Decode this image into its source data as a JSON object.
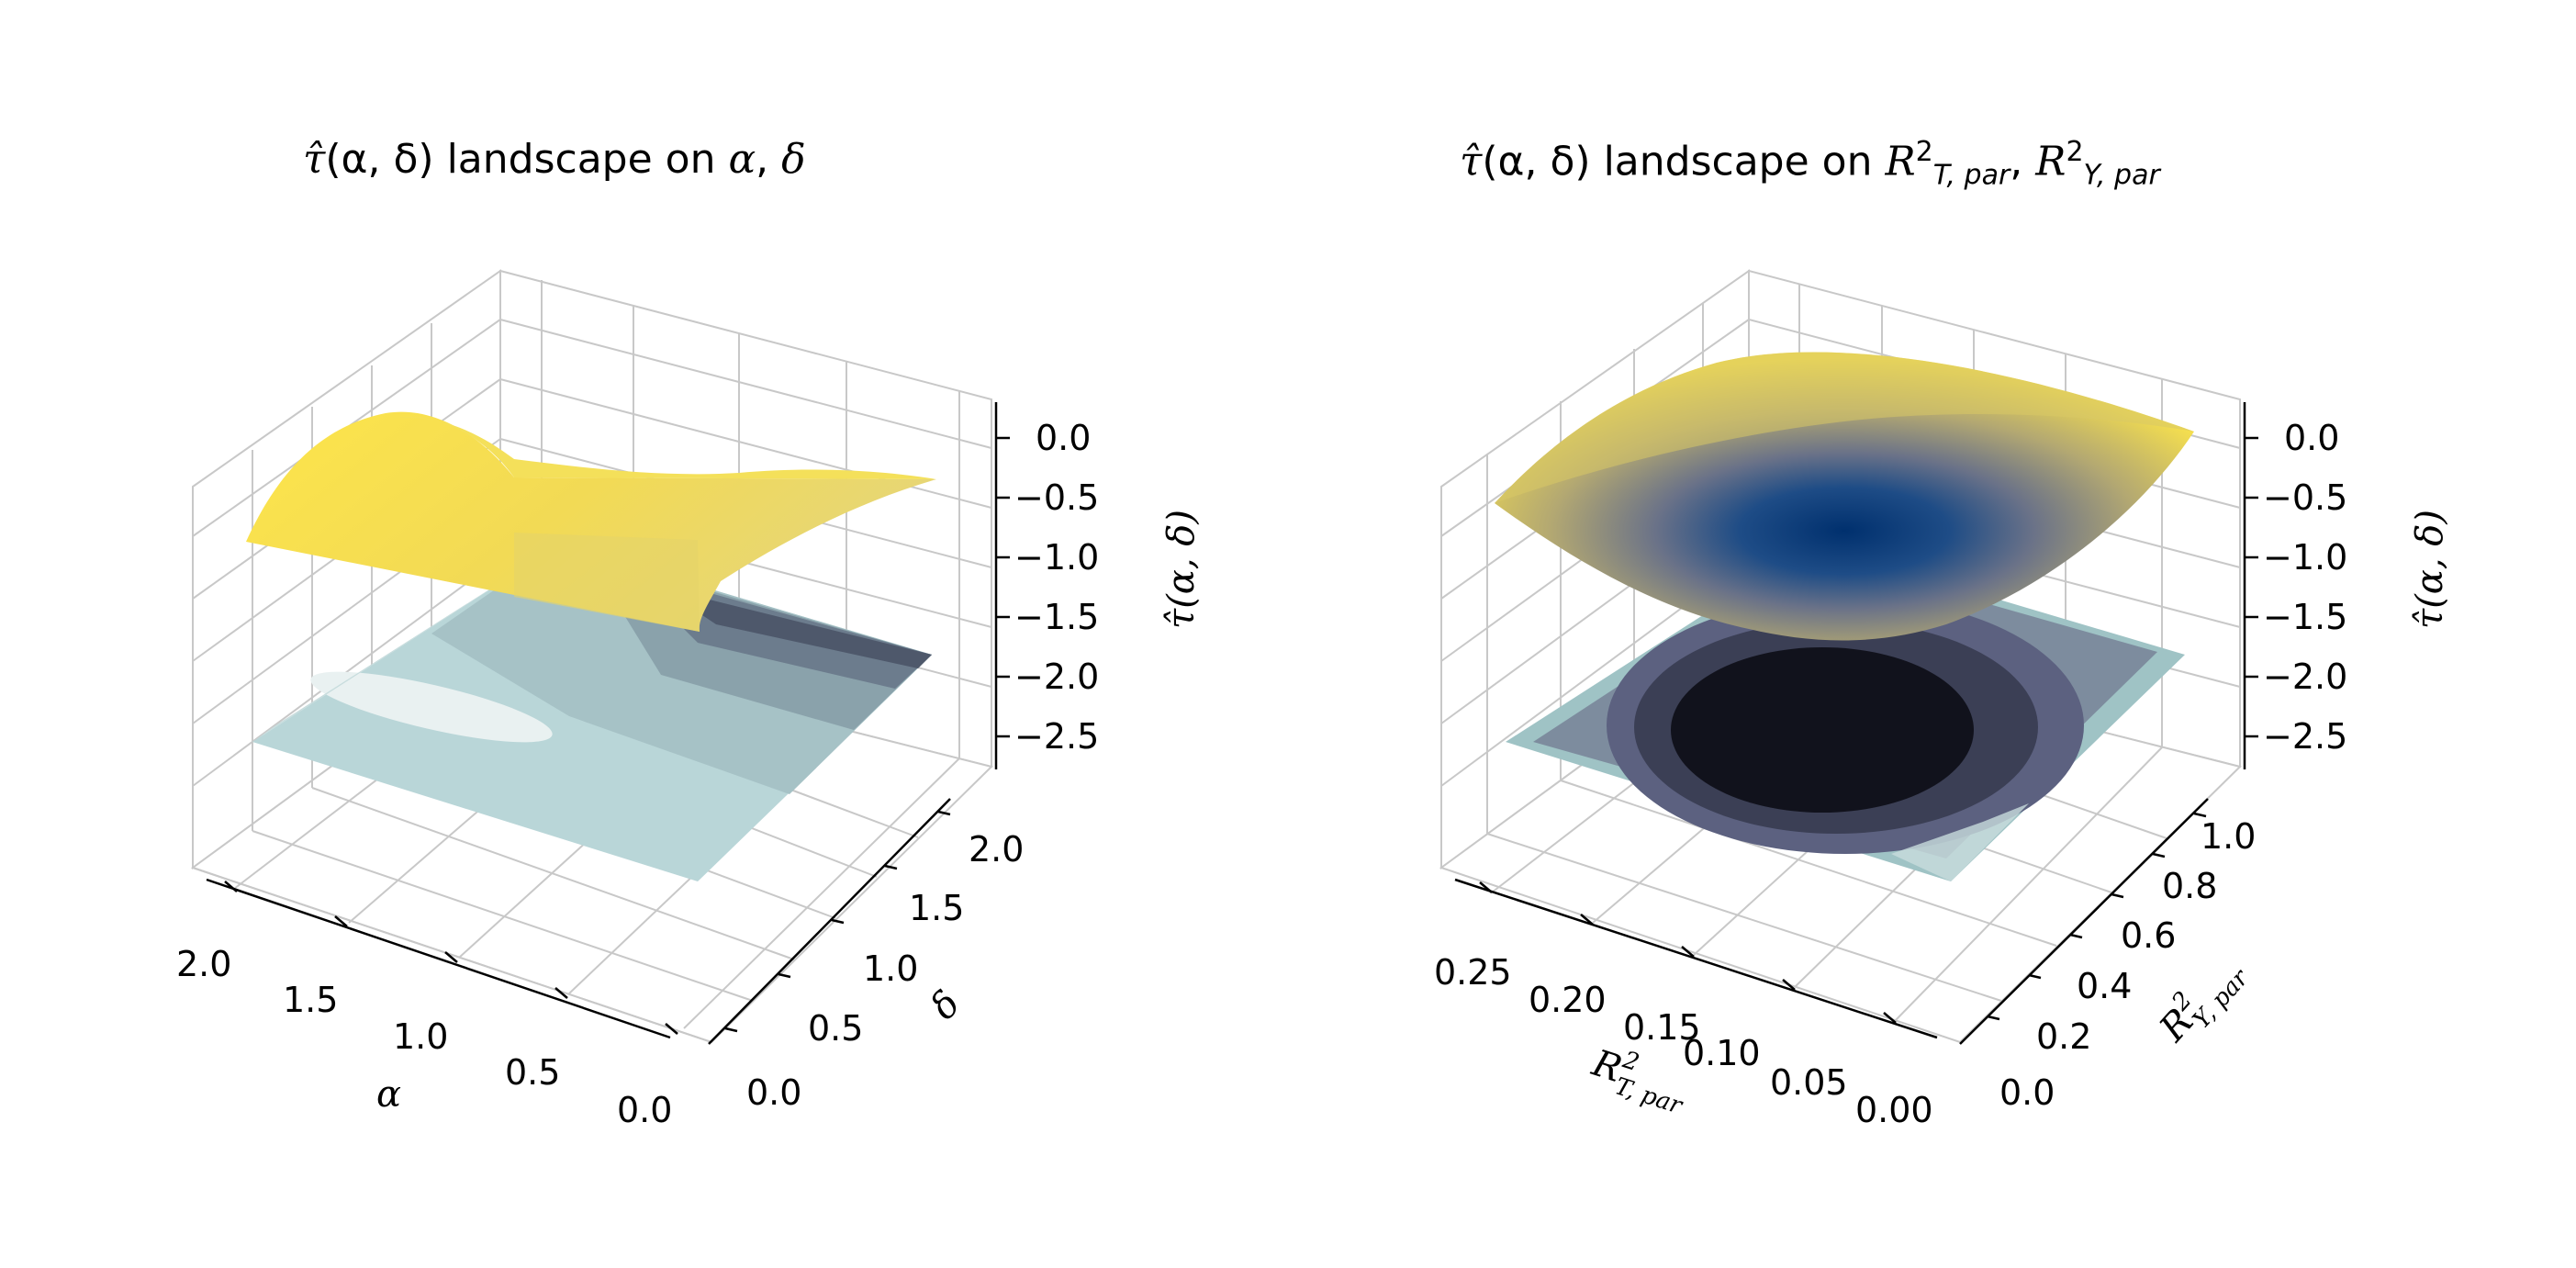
{
  "chart_data": [
    {
      "type": "surface3d",
      "title": "τ̂(α, δ) landscape on α, δ",
      "title_parts": {
        "tau": "τ̂",
        "args": "(α, δ)",
        "text": "landscape on",
        "v1": "α",
        "sep": ",",
        "v2": "δ"
      },
      "xlabel": "α",
      "ylabel": "δ",
      "zlabel": "τ̂(α, δ)",
      "x_ticks": [
        "2.0",
        "1.5",
        "1.0",
        "0.5",
        "0.0"
      ],
      "y_ticks": [
        "0.0",
        "0.5",
        "1.0",
        "1.5",
        "2.0"
      ],
      "z_ticks": [
        "0.0",
        "−0.5",
        "−1.0",
        "−1.5",
        "−2.0",
        "−2.5"
      ],
      "xlim": [
        0,
        2
      ],
      "ylim": [
        0,
        2
      ],
      "zlim": [
        -2.7,
        0.2
      ],
      "colormap": "cividis",
      "surface_z_range": [
        -1.5,
        -0.3
      ],
      "contour_floor": true
    },
    {
      "type": "surface3d",
      "title": "τ̂(α, δ) landscape on R²T,par, R²Y,par",
      "title_parts": {
        "tau": "τ̂",
        "args": "(α, δ)",
        "text": "landscape on",
        "r": "R",
        "sup": "2",
        "sub1": "T, par",
        "sep": ",",
        "sub2": "Y, par"
      },
      "xlabel": "R²T,par",
      "ylabel": "R²Y,par",
      "zlabel": "τ̂(α, δ)",
      "x_ticks": [
        "0.25",
        "0.20",
        "0.15",
        "0.10",
        "0.05",
        "0.00"
      ],
      "y_ticks": [
        "0.0",
        "0.2",
        "0.4",
        "0.6",
        "0.8",
        "1.0"
      ],
      "z_ticks": [
        "0.0",
        "−0.5",
        "−1.0",
        "−1.5",
        "−2.0",
        "−2.5"
      ],
      "xlim": [
        0,
        0.28
      ],
      "ylim": [
        0,
        1
      ],
      "zlim": [
        -2.7,
        0.2
      ],
      "colormap": "cividis",
      "surface_z_range": [
        -1.6,
        -0.1
      ],
      "contour_floor": true
    }
  ],
  "colors": {
    "surface_high": "#fde74c",
    "surface_low": "#00204d",
    "pane": "#ffffff",
    "grid": "#c8c8c8",
    "floor_light": "#e8efef",
    "floor_mid": "#b8d6d8",
    "floor_dark": "#101018"
  }
}
